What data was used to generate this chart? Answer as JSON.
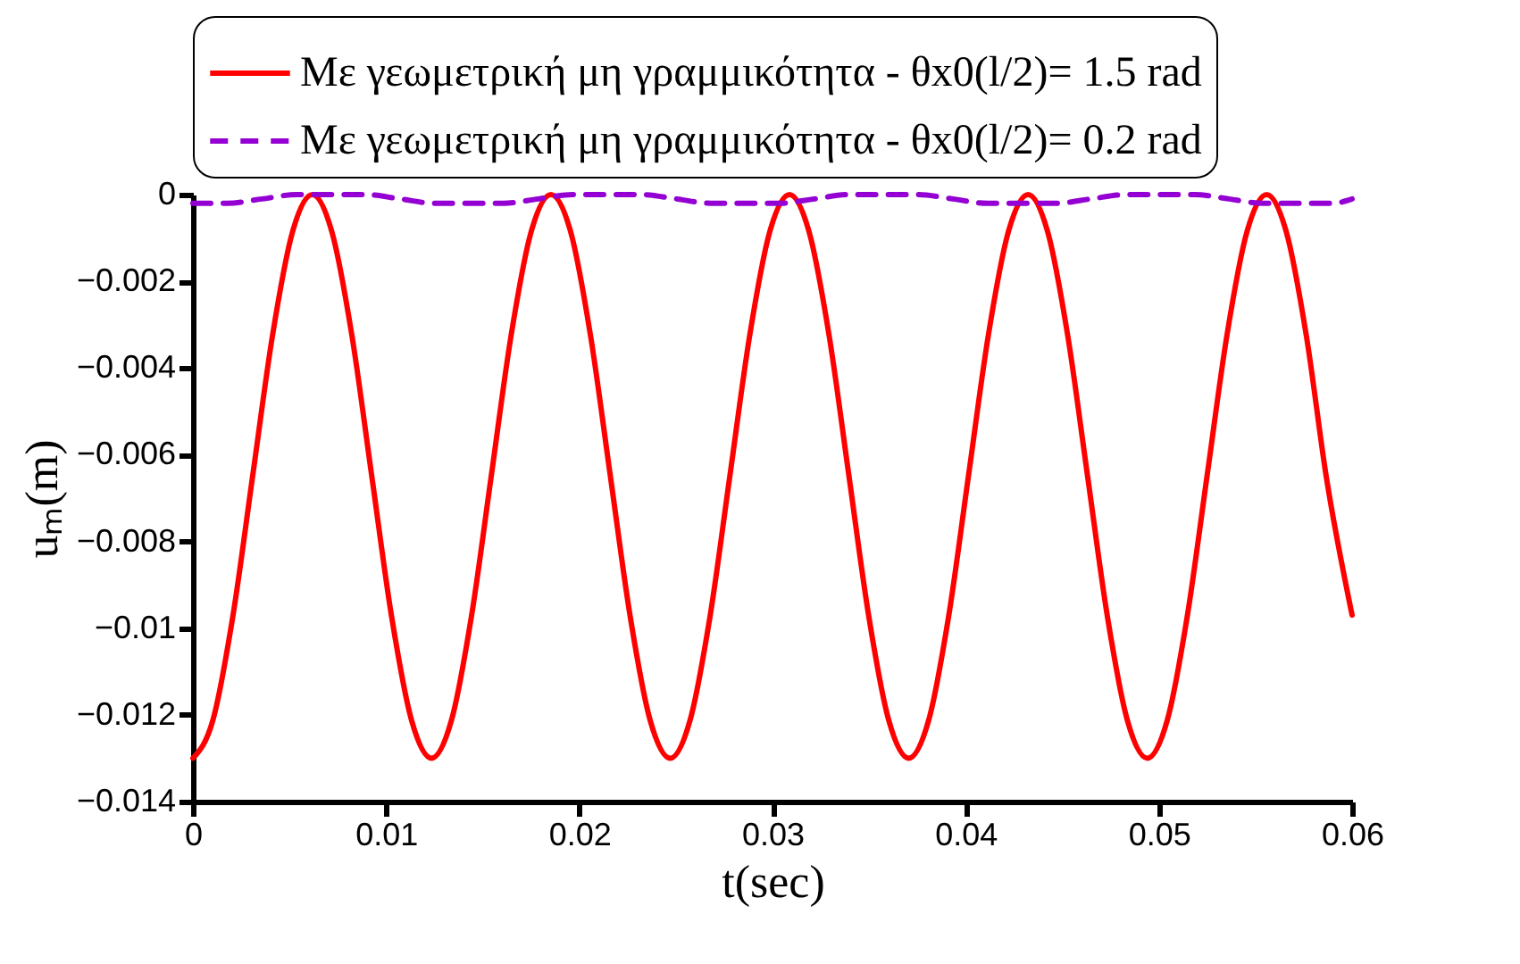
{
  "chart_data": {
    "type": "line",
    "xlabel": "t(sec)",
    "ylabel": "uₘ(m)",
    "xlim": [
      0,
      0.06
    ],
    "xticks": [
      0,
      0.01,
      0.02,
      0.03,
      0.04,
      0.05,
      0.06
    ],
    "ylim": [
      -0.014,
      0
    ],
    "yticks": [
      -0.014,
      -0.012,
      -0.01,
      -0.008,
      -0.006,
      -0.004,
      -0.002,
      0
    ],
    "grid": false,
    "legend": "top",
    "marker": "none",
    "series": [
      {
        "name": "Με γεωμετρική μη γραμμικότητα - θx0(l/2)= 1.5 rad",
        "color": "#ff0000",
        "line_style": "solid",
        "x": [
          0,
          0.00103,
          0.00206,
          0.00309,
          0.00412,
          0.00515,
          0.00618,
          0.0072,
          0.00823,
          0.00926,
          0.01029,
          0.01132,
          0.01235,
          0.01338,
          0.01441,
          0.01544,
          0.01647,
          0.0175,
          0.01853,
          0.01956,
          0.02058,
          0.02161,
          0.02264,
          0.02367,
          0.0247,
          0.02573,
          0.02676,
          0.02779,
          0.02882,
          0.02985,
          0.03088,
          0.0319,
          0.03293,
          0.03396,
          0.03499,
          0.03602,
          0.03705,
          0.03808,
          0.03911,
          0.04014,
          0.04117,
          0.0422,
          0.04323,
          0.04425,
          0.04528,
          0.04631,
          0.04734,
          0.04837,
          0.0494,
          0.05043,
          0.05146,
          0.05249,
          0.05352,
          0.05455,
          0.05558,
          0.0566,
          0.05763,
          0.05866,
          0.06
        ],
        "values": [
          -0.013,
          -0.01213,
          -0.00975,
          -0.0065,
          -0.00325,
          -0.00087,
          0,
          -0.00087,
          -0.00325,
          -0.0065,
          -0.00975,
          -0.01213,
          -0.013,
          -0.01213,
          -0.00975,
          -0.0065,
          -0.00325,
          -0.00087,
          0,
          -0.00087,
          -0.00325,
          -0.0065,
          -0.00975,
          -0.01213,
          -0.013,
          -0.01213,
          -0.00975,
          -0.0065,
          -0.00325,
          -0.00087,
          0,
          -0.00087,
          -0.00325,
          -0.0065,
          -0.00975,
          -0.01213,
          -0.013,
          -0.01213,
          -0.00975,
          -0.0065,
          -0.00325,
          -0.00087,
          0,
          -0.00087,
          -0.00325,
          -0.0065,
          -0.00975,
          -0.01213,
          -0.013,
          -0.01213,
          -0.00975,
          -0.0065,
          -0.00325,
          -0.00087,
          0,
          -0.00087,
          -0.00325,
          -0.0065,
          -0.0097
        ]
      },
      {
        "name": "Με γεωμετρική μη γραμμικότητα - θx0(l/2)= 0.2 rad",
        "color": "#9400d3",
        "line_style": "dashed",
        "x": [
          0,
          0.00179,
          0.00358,
          0.00536,
          0.00715,
          0.00894,
          0.01073,
          0.01251,
          0.0143,
          0.01609,
          0.01788,
          0.01966,
          0.02145,
          0.02324,
          0.02503,
          0.02681,
          0.0286,
          0.03039,
          0.03218,
          0.03396,
          0.03575,
          0.03754,
          0.03933,
          0.04111,
          0.0429,
          0.04469,
          0.04648,
          0.04826,
          0.05005,
          0.05184,
          0.05363,
          0.05541,
          0.0572,
          0.05899,
          0.06
        ],
        "values": [
          -0.0002,
          -0.0002,
          -0.0001,
          0,
          0,
          0,
          -0.0001,
          -0.0002,
          -0.0002,
          -0.0002,
          -0.0001,
          0,
          0,
          0,
          -0.0001,
          -0.0002,
          -0.0002,
          -0.0002,
          -0.0001,
          0,
          0,
          0,
          -0.0001,
          -0.0002,
          -0.0002,
          -0.0002,
          -0.0001,
          0,
          0,
          0,
          -0.0001,
          -0.0002,
          -0.0002,
          -0.0002,
          -0.0001
        ]
      }
    ]
  }
}
